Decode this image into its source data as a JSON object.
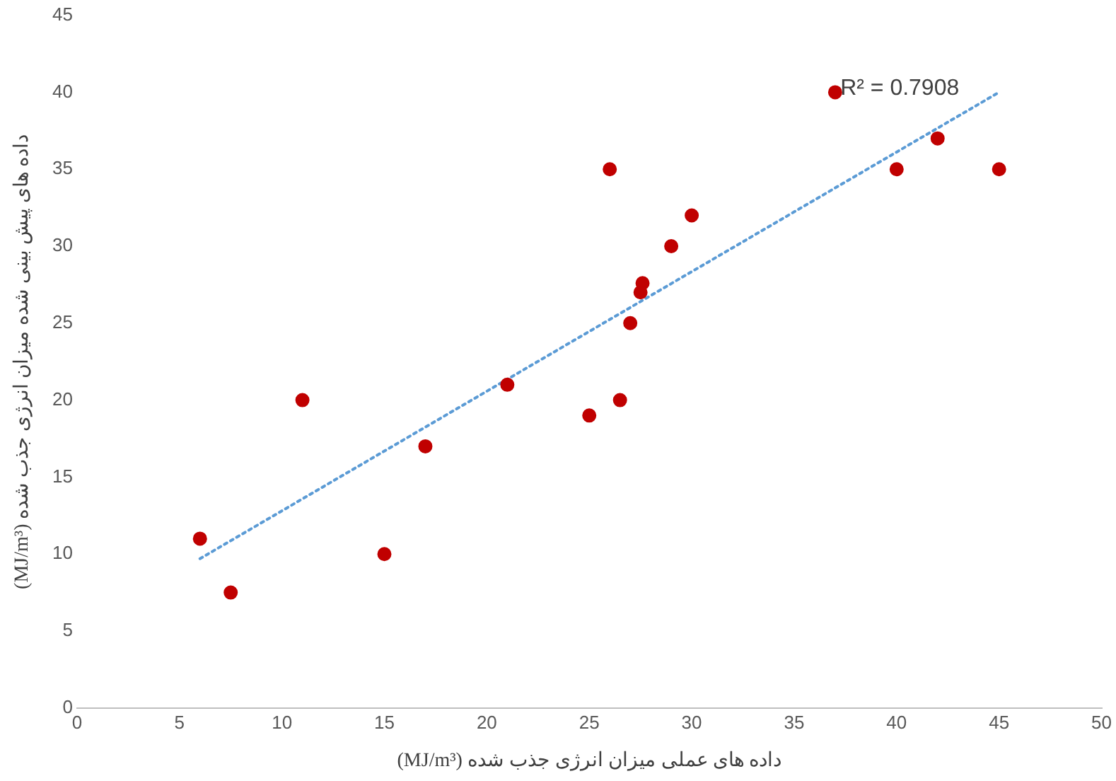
{
  "chart_data": {
    "type": "scatter",
    "xlabel": "داده های عملی میزان انرژی جذب شده (MJ/m³)",
    "ylabel": "داده های پیش بینی شده میزان انرژی جذب شده (MJ/m³)",
    "xlim": [
      0,
      50
    ],
    "xticks": [
      0,
      5,
      10,
      15,
      20,
      25,
      30,
      35,
      40,
      45,
      50
    ],
    "ylim": [
      0,
      45
    ],
    "yticks": [
      0,
      5,
      10,
      15,
      20,
      25,
      30,
      35,
      40,
      45
    ],
    "grid": false,
    "legend": false,
    "marker": "circle",
    "series": [
      {
        "color": "#c00000",
        "x": [
          6,
          7.5,
          11,
          15,
          17,
          21,
          25,
          26,
          26.5,
          27,
          27.5,
          27.6,
          29,
          30,
          37,
          40,
          42,
          45
        ],
        "values": [
          11,
          7.5,
          20,
          10,
          17,
          21,
          19,
          35,
          20,
          25,
          27,
          27.6,
          30,
          32,
          40,
          35,
          37,
          35
        ]
      },
      {
        "type": "line",
        "color": "#5b9bd5",
        "line_style": "dotted",
        "marker": "none",
        "x": [
          6,
          45
        ],
        "values": [
          9.7,
          40
        ]
      }
    ],
    "annotations": [
      "R² = 0.7908"
    ]
  }
}
